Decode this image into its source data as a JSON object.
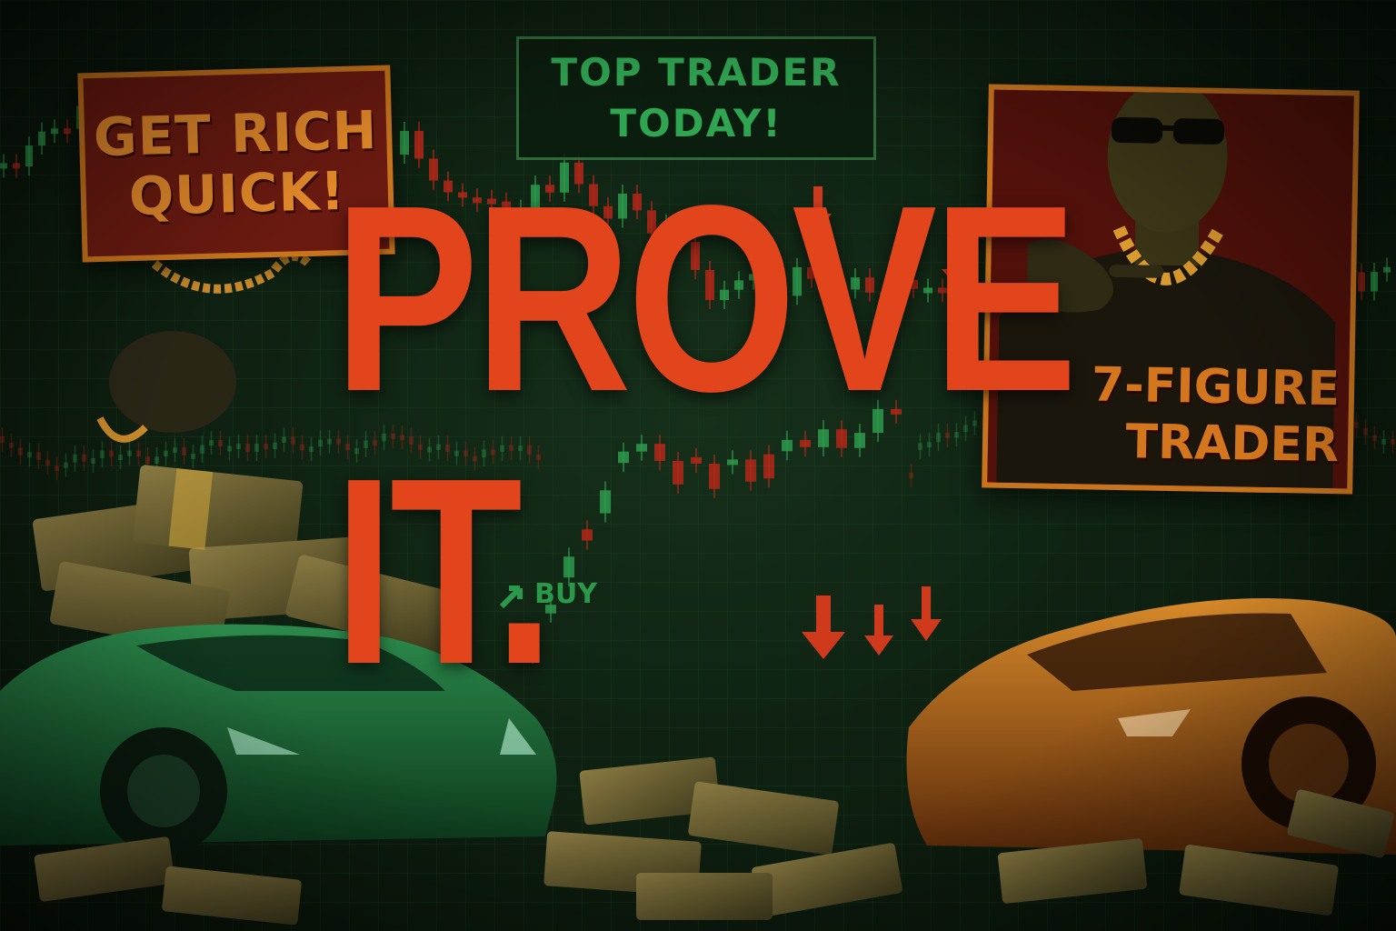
{
  "signs": {
    "get_rich": "GET RICH\nQUICK!",
    "top_trader": "TOP TRADER\nTODAY!",
    "poster_label": "7-FIGURE\nTRADER"
  },
  "headline": "PROVE IT.",
  "buy_label": "BUY",
  "icons": [
    "up-arrow-icon",
    "down-arrow-icon"
  ],
  "colors": {
    "background": "#0f2212",
    "candle_up": "#2e9a4c",
    "candle_down": "#b2281a",
    "headline": "#e2441c",
    "sign_orange": "#c8741c",
    "sign_red": "#6a1a10",
    "car_green": "#1e6a3a",
    "car_orange": "#b8661a"
  }
}
